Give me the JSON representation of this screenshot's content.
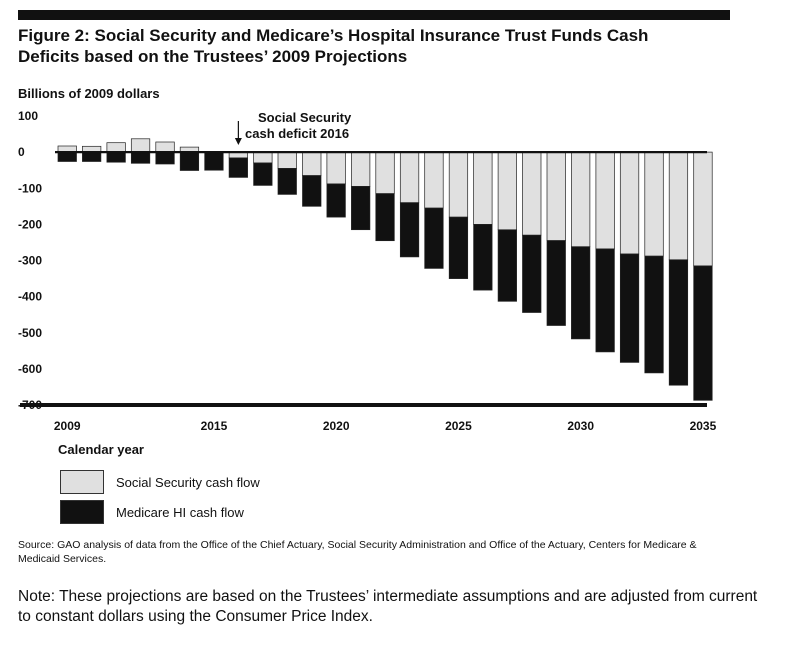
{
  "figure": {
    "title_line1": "Figure 2: Social Security and Medicare’s Hospital Insurance Trust Funds Cash",
    "title_line2": "Deficits based on the Trustees’ 2009 Projections",
    "source": "Source: GAO analysis of data from the Office of the Chief Actuary, Social Security Administration and Office of the Actuary, Centers for Medicare & Medicaid Services.",
    "note": "Note: These projections are based on the Trustees’ intermediate assumptions and are adjusted from current to constant dollars using the Consumer Price Index."
  },
  "chart_data": {
    "type": "bar",
    "stacked": true,
    "ylabel": "Billions of 2009 dollars",
    "xlabel": "Calendar year",
    "ylim": [
      -700,
      100
    ],
    "yticks": [
      100,
      0,
      -100,
      -200,
      -300,
      -400,
      -500,
      -600,
      -700
    ],
    "ytick_labels": [
      "100",
      "0",
      "-100",
      "-200",
      "-300",
      "-400",
      "-500",
      "-600",
      "-700"
    ],
    "xtick_labels": [
      "2009",
      "2015",
      "2020",
      "2025",
      "2030",
      "2035"
    ],
    "categories": [
      "2009",
      "2010",
      "2011",
      "2012",
      "2013",
      "2014",
      "2015",
      "2016",
      "2017",
      "2018",
      "2019",
      "2020",
      "2021",
      "2022",
      "2023",
      "2024",
      "2025",
      "2026",
      "2027",
      "2028",
      "2029",
      "2030",
      "2031",
      "2032",
      "2033",
      "2034",
      "2035"
    ],
    "series": [
      {
        "name": "Social Security cash flow",
        "color": "#e0e0e0",
        "values": [
          17,
          16,
          26,
          37,
          28,
          14,
          0,
          -16,
          -30,
          -45,
          -65,
          -88,
          -95,
          -115,
          -140,
          -155,
          -180,
          -200,
          -215,
          -230,
          -245,
          -262,
          -268,
          -282,
          -288,
          -298,
          -315
        ]
      },
      {
        "name": "Medicare HI cash flow",
        "color": "#111111",
        "values": [
          -26,
          -26,
          -28,
          -31,
          -33,
          -51,
          -50,
          -54,
          -62,
          -72,
          -85,
          -92,
          -120,
          -130,
          -150,
          -167,
          -170,
          -182,
          -198,
          -214,
          -235,
          -255,
          -285,
          -300,
          -323,
          -347,
          -372
        ]
      }
    ],
    "annotations": [
      {
        "text_line1": "Social Security",
        "text_line2": "cash deficit  2016",
        "x": "2016"
      }
    ],
    "legend_position": "bottom-left"
  }
}
